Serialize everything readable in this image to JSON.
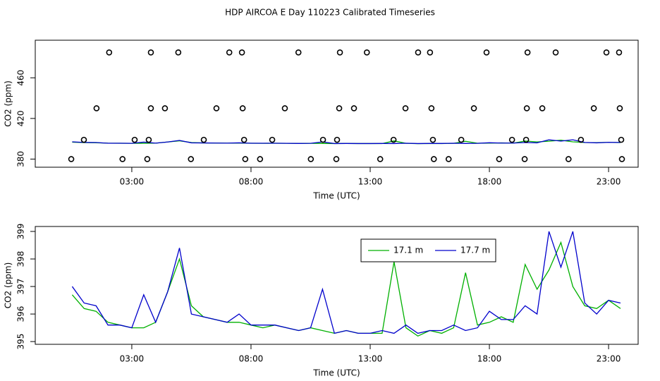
{
  "chart_data": [
    {
      "type": "line",
      "title": "HDP AIRCOA E  Day 110223  Calibrated Timeseries",
      "xlabel": "Time (UTC)",
      "ylabel": "CO2 (ppm)",
      "xlim": [
        -1.05,
        24.24
      ],
      "ylim": [
        372,
        497
      ],
      "xticks": [
        {
          "value": 3,
          "label": "03:00"
        },
        {
          "value": 8,
          "label": "08:00"
        },
        {
          "value": 13,
          "label": "13:00"
        },
        {
          "value": 18,
          "label": "18:00"
        },
        {
          "value": 23,
          "label": "23:00"
        }
      ],
      "yticks": [
        380,
        420,
        460
      ],
      "x": [
        0.5,
        1,
        1.5,
        2,
        2.5,
        3,
        3.5,
        4,
        4.5,
        5,
        5.5,
        6,
        6.5,
        7,
        7.5,
        8,
        8.5,
        9,
        9.5,
        10,
        10.5,
        11,
        11.5,
        12,
        12.5,
        13,
        13.5,
        14,
        14.5,
        15,
        15.5,
        16,
        16.5,
        17,
        17.5,
        18,
        18.5,
        19,
        19.5,
        20,
        20.5,
        21,
        21.5,
        22,
        22.5,
        23,
        23.5
      ],
      "series": [
        {
          "color": "#00b000",
          "values": [
            396.7,
            396.2,
            396.1,
            395.7,
            395.6,
            395.5,
            395.5,
            395.7,
            396.8,
            398.0,
            396.3,
            395.9,
            395.8,
            395.7,
            395.7,
            395.6,
            395.5,
            395.6,
            395.5,
            395.4,
            395.5,
            395.4,
            395.3,
            395.4,
            395.3,
            395.3,
            395.3,
            397.9,
            395.5,
            395.2,
            395.4,
            395.3,
            395.5,
            397.5,
            395.6,
            395.7,
            395.9,
            395.7,
            397.8,
            396.9,
            397.6,
            398.6,
            397.0,
            396.3,
            396.2,
            396.5,
            396.2
          ]
        },
        {
          "color": "#0000cc",
          "values": [
            397.0,
            396.4,
            396.3,
            395.6,
            395.6,
            395.5,
            396.7,
            395.7,
            396.8,
            398.4,
            396.0,
            395.9,
            395.8,
            395.7,
            396.0,
            395.6,
            395.6,
            395.6,
            395.5,
            395.4,
            395.5,
            396.9,
            395.3,
            395.4,
            395.3,
            395.3,
            395.4,
            395.3,
            395.6,
            395.3,
            395.4,
            395.4,
            395.6,
            395.4,
            395.5,
            396.1,
            395.8,
            395.8,
            396.3,
            396.0,
            399.0,
            397.7,
            399.0,
            396.4,
            396.0,
            396.5,
            396.4
          ]
        },
        {
          "type": "scatter",
          "color": "#000000",
          "x": [
            2.05,
            3.8,
            4.95,
            7.09,
            7.62,
            9.99,
            11.73,
            12.86,
            15.01,
            15.51,
            17.88,
            19.6,
            20.78,
            22.91,
            23.44,
            1.52,
            3.8,
            4.39,
            6.55,
            7.65,
            9.42,
            11.7,
            12.32,
            14.48,
            15.57,
            17.35,
            19.57,
            20.22,
            22.38,
            23.47,
            0.99,
            3.12,
            3.71,
            6.02,
            7.71,
            8.89,
            11.02,
            11.61,
            13.98,
            15.63,
            16.82,
            18.95,
            19.54,
            21.84,
            23.53,
            0.46,
            2.61,
            3.65,
            5.48,
            7.76,
            8.38,
            10.51,
            11.58,
            13.42,
            15.67,
            16.29,
            18.41,
            19.48,
            21.32,
            23.56
          ],
          "values": [
            485,
            485,
            485,
            485,
            485,
            485,
            485,
            485,
            485,
            485,
            485,
            485,
            485,
            485,
            485,
            430,
            430,
            430,
            430,
            430,
            430,
            430,
            430,
            430,
            430,
            430,
            430,
            430,
            430,
            430,
            399,
            399,
            399,
            399,
            399,
            399,
            399,
            399,
            399,
            399,
            399,
            399,
            399,
            399,
            399,
            380,
            380,
            380,
            380,
            380,
            380,
            380,
            380,
            380,
            380,
            380,
            380,
            380,
            380,
            380
          ]
        }
      ]
    },
    {
      "type": "line",
      "xlabel": "Time (UTC)",
      "ylabel": "CO2 (ppm)",
      "xlim": [
        -1.05,
        24.24
      ],
      "ylim": [
        394.9,
        399.18
      ],
      "xticks": [
        {
          "value": 3,
          "label": "03:00"
        },
        {
          "value": 8,
          "label": "08:00"
        },
        {
          "value": 13,
          "label": "13:00"
        },
        {
          "value": 18,
          "label": "18:00"
        },
        {
          "value": 23,
          "label": "23:00"
        }
      ],
      "yticks": [
        395,
        396,
        397,
        398,
        399
      ],
      "legend": "top",
      "x": [
        0.5,
        1,
        1.5,
        2,
        2.5,
        3,
        3.5,
        4,
        4.5,
        5,
        5.5,
        6,
        6.5,
        7,
        7.5,
        8,
        8.5,
        9,
        9.5,
        10,
        10.5,
        11,
        11.5,
        12,
        12.5,
        13,
        13.5,
        14,
        14.5,
        15,
        15.5,
        16,
        16.5,
        17,
        17.5,
        18,
        18.5,
        19,
        19.5,
        20,
        20.5,
        21,
        21.5,
        22,
        22.5,
        23,
        23.5
      ],
      "series": [
        {
          "name": "17.1 m",
          "color": "#00b000",
          "values": [
            396.7,
            396.2,
            396.1,
            395.7,
            395.6,
            395.5,
            395.5,
            395.7,
            396.8,
            398.0,
            396.3,
            395.9,
            395.8,
            395.7,
            395.7,
            395.6,
            395.5,
            395.6,
            395.5,
            395.4,
            395.5,
            395.4,
            395.3,
            395.4,
            395.3,
            395.3,
            395.3,
            397.9,
            395.5,
            395.2,
            395.4,
            395.3,
            395.5,
            397.5,
            395.6,
            395.7,
            395.9,
            395.7,
            397.8,
            396.9,
            397.6,
            398.6,
            397.0,
            396.3,
            396.2,
            396.5,
            396.2
          ]
        },
        {
          "name": "17.7 m",
          "color": "#0000cc",
          "values": [
            397.0,
            396.4,
            396.3,
            395.6,
            395.6,
            395.5,
            396.7,
            395.7,
            396.8,
            398.4,
            396.0,
            395.9,
            395.8,
            395.7,
            396.0,
            395.6,
            395.6,
            395.6,
            395.5,
            395.4,
            395.5,
            396.9,
            395.3,
            395.4,
            395.3,
            395.3,
            395.4,
            395.3,
            395.6,
            395.3,
            395.4,
            395.4,
            395.6,
            395.4,
            395.5,
            396.1,
            395.8,
            395.8,
            396.3,
            396.0,
            399.0,
            397.7,
            399.0,
            396.4,
            396.0,
            396.5,
            396.4
          ]
        }
      ]
    }
  ]
}
